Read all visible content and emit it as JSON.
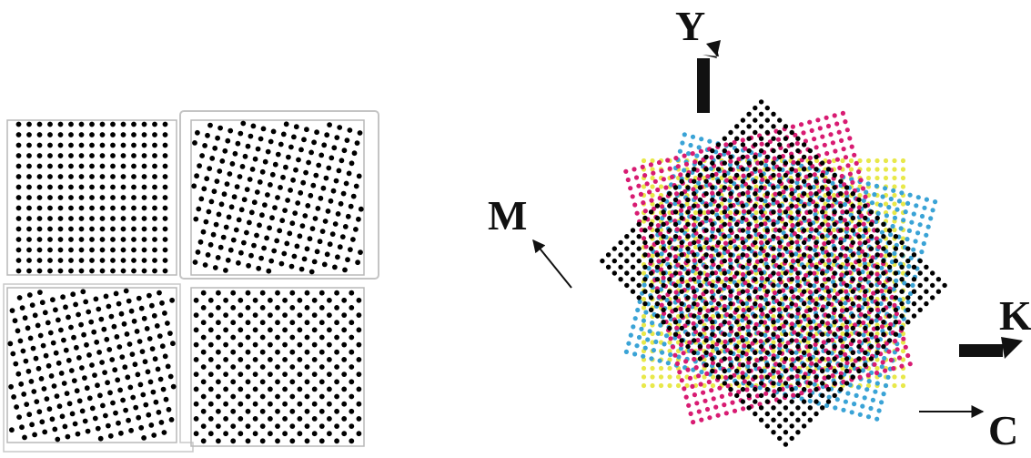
{
  "screens": {
    "panels": [
      {
        "name": "angle-0",
        "angle_deg": 0
      },
      {
        "name": "angle-15",
        "angle_deg": 15
      },
      {
        "name": "angle-75",
        "angle_deg": 75
      },
      {
        "name": "angle-45",
        "angle_deg": 45
      }
    ],
    "dot_color": "#000000",
    "frame_color": "#b8b8b8"
  },
  "rosette": {
    "layers": [
      {
        "channel": "Y",
        "label": "Y",
        "angle_deg": 0,
        "color": "#e8e84a"
      },
      {
        "channel": "C",
        "label": "C",
        "angle_deg": 15,
        "color": "#3aa3d6"
      },
      {
        "channel": "M",
        "label": "M",
        "angle_deg": 75,
        "color": "#d81b72"
      },
      {
        "channel": "K",
        "label": "K",
        "angle_deg": 45,
        "color": "#000000"
      }
    ]
  }
}
